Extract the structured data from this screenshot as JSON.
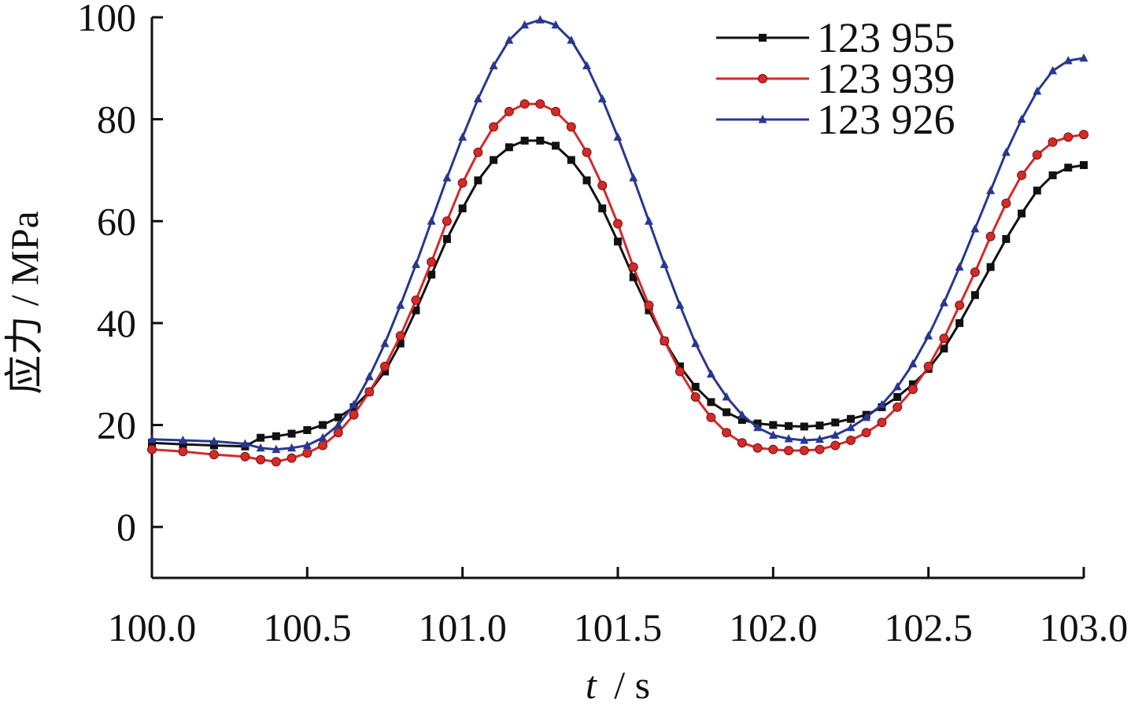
{
  "chart_data": {
    "type": "line",
    "xlabel_var": "t",
    "xlabel_unit": "/ s",
    "ylabel": "应力 / MPa",
    "xlim": [
      100.0,
      103.0
    ],
    "ylim": [
      -10,
      100
    ],
    "xticks": [
      "100.0",
      "100.5",
      "101.0",
      "101.5",
      "102.0",
      "102.5",
      "103.0"
    ],
    "yticks": [
      "0",
      "20",
      "40",
      "60",
      "80",
      "100"
    ],
    "legend_position": "top-right",
    "grid": false,
    "series": [
      {
        "name": "123 955",
        "color": "#111111",
        "marker": "square",
        "x": [
          100.0,
          100.1,
          100.2,
          100.3,
          100.35,
          100.4,
          100.45,
          100.5,
          100.55,
          100.6,
          100.65,
          100.7,
          100.75,
          100.8,
          100.85,
          100.9,
          100.95,
          101.0,
          101.05,
          101.1,
          101.15,
          101.2,
          101.25,
          101.3,
          101.35,
          101.4,
          101.45,
          101.5,
          101.55,
          101.6,
          101.65,
          101.7,
          101.75,
          101.8,
          101.85,
          101.9,
          101.95,
          102.0,
          102.05,
          102.1,
          102.15,
          102.2,
          102.25,
          102.3,
          102.35,
          102.4,
          102.45,
          102.5,
          102.55,
          102.6,
          102.65,
          102.7,
          102.75,
          102.8,
          102.85,
          102.9,
          102.95,
          103.0
        ],
        "y": [
          16.5,
          16.2,
          16.0,
          15.8,
          17.5,
          17.8,
          18.3,
          19.0,
          20.0,
          21.5,
          23.5,
          26.5,
          30.5,
          36.0,
          42.5,
          49.5,
          56.5,
          62.5,
          68.0,
          72.0,
          74.5,
          75.8,
          75.8,
          74.8,
          72.0,
          68.0,
          62.5,
          56.0,
          49.0,
          42.5,
          36.5,
          31.5,
          27.5,
          24.5,
          22.5,
          21.0,
          20.3,
          20.0,
          19.8,
          19.7,
          19.9,
          20.5,
          21.2,
          22.0,
          23.5,
          25.5,
          28.0,
          31.0,
          35.0,
          40.0,
          45.5,
          51.0,
          56.5,
          61.5,
          66.0,
          69.0,
          70.5,
          71.0
        ]
      },
      {
        "name": "123 939",
        "color": "#d42a2a",
        "marker": "circle",
        "x": [
          100.0,
          100.1,
          100.2,
          100.3,
          100.35,
          100.4,
          100.45,
          100.5,
          100.55,
          100.6,
          100.65,
          100.7,
          100.75,
          100.8,
          100.85,
          100.9,
          100.95,
          101.0,
          101.05,
          101.1,
          101.15,
          101.2,
          101.25,
          101.3,
          101.35,
          101.4,
          101.45,
          101.5,
          101.55,
          101.6,
          101.65,
          101.7,
          101.75,
          101.8,
          101.85,
          101.9,
          101.95,
          102.0,
          102.05,
          102.1,
          102.15,
          102.2,
          102.25,
          102.3,
          102.35,
          102.4,
          102.45,
          102.5,
          102.55,
          102.6,
          102.65,
          102.7,
          102.75,
          102.8,
          102.85,
          102.9,
          102.95,
          103.0
        ],
        "y": [
          15.2,
          14.8,
          14.2,
          13.8,
          13.2,
          12.8,
          13.5,
          14.5,
          16.0,
          18.5,
          22.0,
          26.5,
          31.5,
          37.5,
          44.5,
          52.0,
          60.0,
          67.5,
          73.5,
          78.5,
          81.5,
          83.0,
          83.0,
          81.5,
          78.5,
          73.5,
          67.0,
          59.5,
          51.0,
          43.5,
          36.5,
          30.5,
          25.5,
          21.5,
          18.5,
          16.5,
          15.5,
          15.2,
          15.0,
          15.0,
          15.2,
          16.0,
          17.0,
          18.5,
          20.5,
          23.5,
          27.0,
          31.5,
          37.0,
          43.5,
          50.0,
          57.0,
          63.5,
          69.0,
          73.0,
          75.5,
          76.5,
          77.0
        ]
      },
      {
        "name": "123 926",
        "color": "#283890",
        "marker": "triangle",
        "x": [
          100.0,
          100.1,
          100.2,
          100.3,
          100.35,
          100.4,
          100.45,
          100.5,
          100.55,
          100.6,
          100.65,
          100.7,
          100.75,
          100.8,
          100.85,
          100.9,
          100.95,
          101.0,
          101.05,
          101.1,
          101.15,
          101.2,
          101.25,
          101.3,
          101.35,
          101.4,
          101.45,
          101.5,
          101.55,
          101.6,
          101.65,
          101.7,
          101.75,
          101.8,
          101.85,
          101.9,
          101.95,
          102.0,
          102.05,
          102.1,
          102.15,
          102.2,
          102.25,
          102.3,
          102.35,
          102.4,
          102.45,
          102.5,
          102.55,
          102.6,
          102.65,
          102.7,
          102.75,
          102.8,
          102.85,
          102.9,
          102.95,
          103.0
        ],
        "y": [
          17.2,
          17.0,
          16.8,
          16.3,
          15.5,
          15.2,
          15.5,
          16.0,
          17.5,
          20.0,
          24.0,
          29.5,
          36.0,
          43.5,
          51.5,
          60.0,
          68.5,
          76.5,
          84.0,
          90.5,
          95.5,
          98.5,
          99.5,
          98.5,
          95.5,
          90.5,
          84.0,
          76.5,
          68.5,
          60.0,
          51.5,
          43.5,
          36.0,
          30.0,
          25.5,
          22.0,
          19.5,
          18.0,
          17.3,
          17.0,
          17.2,
          18.0,
          19.5,
          21.5,
          24.0,
          27.5,
          32.0,
          37.5,
          44.0,
          51.0,
          58.5,
          66.0,
          73.5,
          80.0,
          85.5,
          89.5,
          91.5,
          92.0
        ]
      }
    ]
  }
}
